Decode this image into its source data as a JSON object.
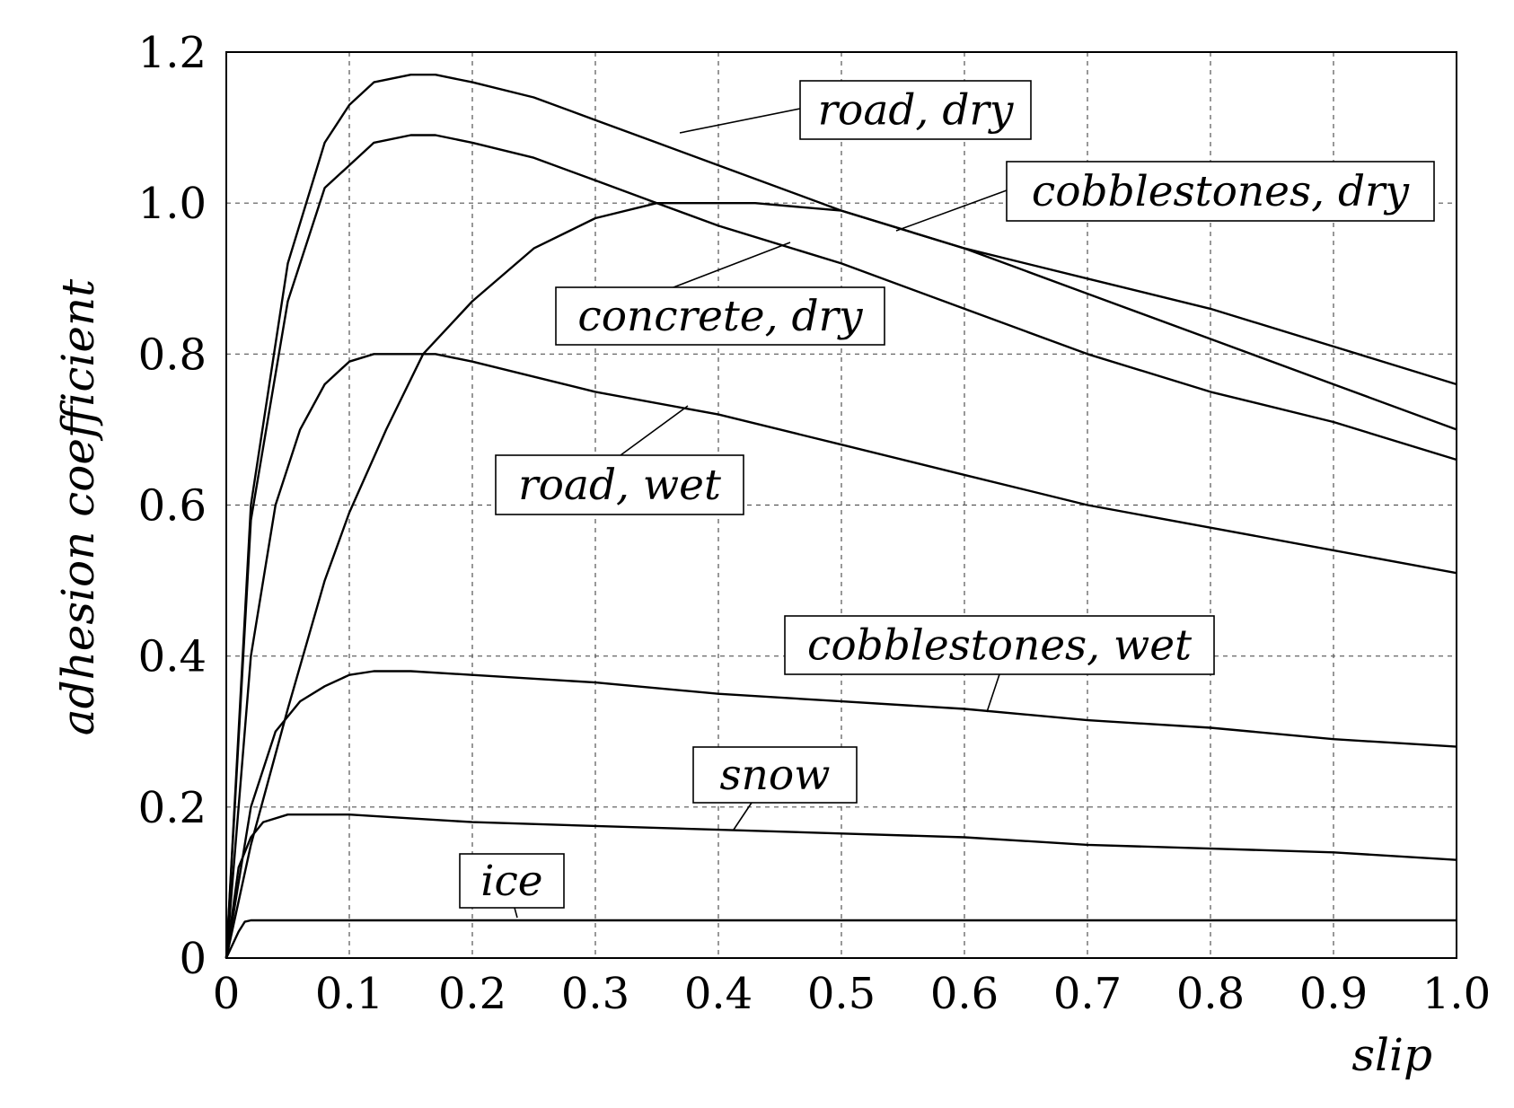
{
  "chart_data": {
    "type": "line",
    "xlabel": "slip",
    "ylabel": "adhesion coefficient",
    "xlim": [
      0,
      1.0
    ],
    "ylim": [
      0,
      1.2
    ],
    "grid": true,
    "x_ticks": [
      0,
      0.1,
      0.2,
      0.3,
      0.4,
      0.5,
      0.6,
      0.7,
      0.8,
      0.9,
      1.0
    ],
    "x_tick_labels": [
      "0",
      "0.1",
      "0.2",
      "0.3",
      "0.4",
      "0.5",
      "0.6",
      "0.7",
      "0.8",
      "0.9",
      "1.0"
    ],
    "y_ticks": [
      0,
      0.2,
      0.4,
      0.6,
      0.8,
      1.0,
      1.2
    ],
    "y_tick_labels": [
      "0",
      "0.2",
      "0.4",
      "0.6",
      "0.8",
      "1.0",
      "1.2"
    ],
    "series": [
      {
        "name": "road, dry",
        "x": [
          0,
          0.02,
          0.05,
          0.08,
          0.1,
          0.12,
          0.15,
          0.17,
          0.2,
          0.25,
          0.3,
          0.35,
          0.4,
          0.5,
          0.6,
          0.7,
          0.8,
          0.9,
          1.0
        ],
        "y": [
          0,
          0.6,
          0.92,
          1.08,
          1.13,
          1.16,
          1.17,
          1.17,
          1.16,
          1.14,
          1.11,
          1.08,
          1.05,
          0.99,
          0.94,
          0.9,
          0.86,
          0.81,
          0.76
        ]
      },
      {
        "name": "cobblestones, dry",
        "x": [
          0,
          0.02,
          0.05,
          0.08,
          0.1,
          0.12,
          0.15,
          0.17,
          0.2,
          0.25,
          0.3,
          0.35,
          0.4,
          0.5,
          0.6,
          0.7,
          0.8,
          0.9,
          1.0
        ],
        "y": [
          0,
          0.58,
          0.87,
          1.02,
          1.05,
          1.08,
          1.09,
          1.09,
          1.08,
          1.06,
          1.03,
          1.0,
          0.97,
          0.92,
          0.86,
          0.8,
          0.75,
          0.71,
          0.66
        ]
      },
      {
        "name": "concrete, dry",
        "x": [
          0,
          0.02,
          0.05,
          0.08,
          0.1,
          0.13,
          0.16,
          0.2,
          0.25,
          0.3,
          0.35,
          0.4,
          0.43,
          0.5,
          0.6,
          0.7,
          0.8,
          0.9,
          1.0
        ],
        "y": [
          0,
          0.15,
          0.33,
          0.5,
          0.59,
          0.7,
          0.8,
          0.87,
          0.94,
          0.98,
          1.0,
          1.0,
          1.0,
          0.99,
          0.94,
          0.88,
          0.82,
          0.76,
          0.7
        ]
      },
      {
        "name": "road, wet",
        "x": [
          0,
          0.02,
          0.04,
          0.06,
          0.08,
          0.1,
          0.12,
          0.14,
          0.17,
          0.2,
          0.25,
          0.3,
          0.4,
          0.5,
          0.6,
          0.7,
          0.8,
          0.9,
          1.0
        ],
        "y": [
          0,
          0.4,
          0.6,
          0.7,
          0.76,
          0.79,
          0.8,
          0.8,
          0.8,
          0.79,
          0.77,
          0.75,
          0.72,
          0.68,
          0.64,
          0.6,
          0.57,
          0.54,
          0.51
        ]
      },
      {
        "name": "cobblestones, wet",
        "x": [
          0,
          0.02,
          0.04,
          0.06,
          0.08,
          0.1,
          0.12,
          0.15,
          0.2,
          0.3,
          0.4,
          0.5,
          0.6,
          0.7,
          0.8,
          0.9,
          1.0
        ],
        "y": [
          0,
          0.2,
          0.3,
          0.34,
          0.36,
          0.375,
          0.38,
          0.38,
          0.375,
          0.365,
          0.35,
          0.34,
          0.33,
          0.315,
          0.305,
          0.29,
          0.28
        ]
      },
      {
        "name": "snow",
        "x": [
          0,
          0.01,
          0.02,
          0.03,
          0.05,
          0.07,
          0.1,
          0.15,
          0.2,
          0.3,
          0.4,
          0.5,
          0.6,
          0.7,
          0.8,
          0.9,
          1.0
        ],
        "y": [
          0,
          0.12,
          0.16,
          0.18,
          0.19,
          0.19,
          0.19,
          0.185,
          0.18,
          0.175,
          0.17,
          0.165,
          0.16,
          0.15,
          0.145,
          0.14,
          0.13
        ]
      },
      {
        "name": "ice",
        "x": [
          0,
          0.01,
          0.015,
          0.02,
          0.1,
          0.3,
          0.5,
          0.7,
          0.9,
          1.0
        ],
        "y": [
          0,
          0.035,
          0.048,
          0.05,
          0.05,
          0.05,
          0.05,
          0.05,
          0.05,
          0.05
        ]
      }
    ]
  }
}
